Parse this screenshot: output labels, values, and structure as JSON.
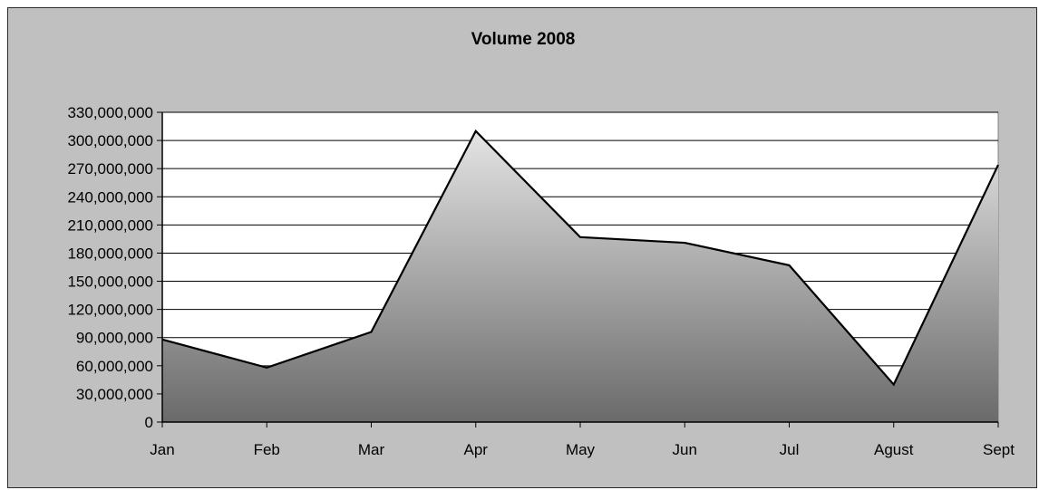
{
  "chart_data": {
    "type": "area",
    "title": "Volume 2008",
    "xlabel": "",
    "ylabel": "",
    "categories": [
      "Jan",
      "Feb",
      "Mar",
      "Apr",
      "May",
      "Jun",
      "Jul",
      "Agust",
      "Sept"
    ],
    "series": [
      {
        "values": [
          88000000,
          58000000,
          96000000,
          310000000,
          197000000,
          191000000,
          167000000,
          40000000,
          274000000
        ]
      }
    ],
    "ylim": [
      0,
      330000000
    ],
    "yticks": [
      "0",
      "30,000,000",
      "60,000,000",
      "90,000,000",
      "120,000,000",
      "150,000,000",
      "180,000,000",
      "210,000,000",
      "240,000,000",
      "270,000,000",
      "300,000,000",
      "330,000,000"
    ],
    "grid": true,
    "legend": "none",
    "colors": {
      "chart_background": "#c0c0c0",
      "plot_background": "#ffffff",
      "fill_top": "#e4e4e4",
      "fill_bottom": "#6a6a6a",
      "line": "#000000",
      "grid": "#000000"
    }
  }
}
